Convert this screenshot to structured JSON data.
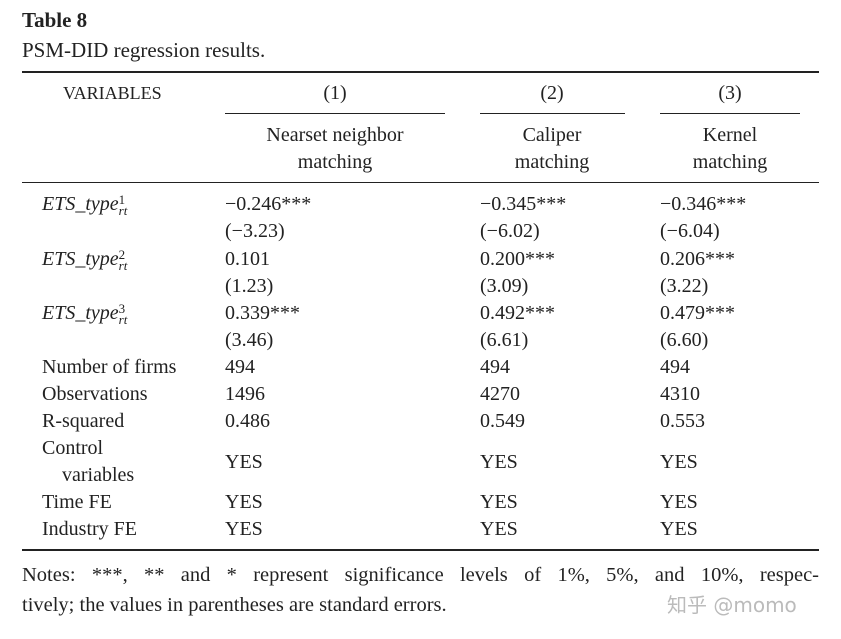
{
  "title": "Table 8",
  "caption": "PSM-DID regression results.",
  "table": {
    "header": [
      "VARIABLES",
      "(1)",
      "(2)",
      "(3)"
    ],
    "methods": [
      [
        "Nearset neighbor",
        "matching"
      ],
      [
        "Caliper",
        "matching"
      ],
      [
        "Kernel",
        "matching"
      ]
    ],
    "variables": [
      {
        "name": "ETS_type",
        "sup": "1",
        "sub": "rt",
        "coef": [
          "−0.246***",
          "−0.345***",
          "−0.346***"
        ],
        "t": [
          "(−3.23)",
          "(−6.02)",
          "(−6.04)"
        ]
      },
      {
        "name": "ETS_type",
        "sup": "2",
        "sub": "rt",
        "coef": [
          "0.101",
          "0.200***",
          "0.206***"
        ],
        "t": [
          "(1.23)",
          "(3.09)",
          "(3.22)"
        ]
      },
      {
        "name": "ETS_type",
        "sup": "3",
        "sub": "rt",
        "coef": [
          "0.339***",
          "0.492***",
          "0.479***"
        ],
        "t": [
          "(3.46)",
          "(6.61)",
          "(6.60)"
        ]
      }
    ],
    "stats": [
      {
        "label": [
          "Number of firms"
        ],
        "cells": [
          "494",
          "494",
          "494"
        ]
      },
      {
        "label": [
          "Observations"
        ],
        "cells": [
          "1496",
          "4270",
          "4310"
        ]
      },
      {
        "label": [
          "R-squared"
        ],
        "cells": [
          "0.486",
          "0.549",
          "0.553"
        ]
      },
      {
        "label": [
          "Control",
          "variables"
        ],
        "cells": [
          "YES",
          "YES",
          "YES"
        ]
      },
      {
        "label": [
          "Time FE"
        ],
        "cells": [
          "YES",
          "YES",
          "YES"
        ]
      },
      {
        "label": [
          "Industry FE"
        ],
        "cells": [
          "YES",
          "YES",
          "YES"
        ]
      }
    ]
  },
  "notes": [
    "Notes: ***, ** and * represent significance levels of 1%, 5%, and 10%, respec-",
    "tively; the values in parentheses are standard errors."
  ],
  "watermark": "知乎 @momo"
}
